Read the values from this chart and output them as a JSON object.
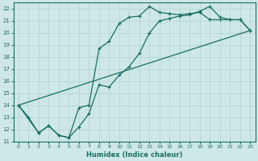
{
  "xlabel": "Humidex (Indice chaleur)",
  "ylabel": "",
  "xlim": [
    -0.5,
    23.5
  ],
  "ylim": [
    11,
    22.5
  ],
  "xticks": [
    0,
    1,
    2,
    3,
    4,
    5,
    6,
    7,
    8,
    9,
    10,
    11,
    12,
    13,
    14,
    15,
    16,
    17,
    18,
    19,
    20,
    21,
    22,
    23
  ],
  "yticks": [
    11,
    12,
    13,
    14,
    15,
    16,
    17,
    18,
    19,
    20,
    21,
    22
  ],
  "bg_color": "#cde8e6",
  "grid_color": "#b8d8d6",
  "line_color": "#1a6e65",
  "line1_x": [
    0,
    1,
    2,
    3,
    4,
    5,
    6,
    7,
    8,
    9,
    10,
    11,
    12,
    13,
    14,
    15,
    16,
    17,
    18,
    19,
    20,
    21,
    22,
    23
  ],
  "line1_y": [
    14.0,
    13.0,
    11.7,
    12.3,
    11.5,
    11.3,
    12.2,
    13.3,
    15.7,
    15.5,
    16.5,
    17.2,
    18.3,
    20.0,
    21.0,
    21.2,
    21.4,
    21.5,
    21.8,
    22.2,
    21.3,
    21.1,
    21.1,
    20.2
  ],
  "line2_x": [
    0,
    2,
    3,
    4,
    5,
    6,
    7,
    8,
    9,
    10,
    11,
    12,
    13,
    14,
    15,
    16,
    17,
    18,
    19,
    20,
    21,
    22,
    23
  ],
  "line2_y": [
    14.0,
    11.7,
    12.3,
    11.5,
    11.3,
    13.8,
    14.0,
    18.7,
    19.3,
    20.8,
    21.3,
    21.4,
    22.2,
    21.7,
    21.6,
    21.5,
    21.6,
    21.7,
    21.1,
    21.1,
    21.1,
    21.1,
    20.2
  ],
  "line3_x": [
    0,
    23
  ],
  "line3_y": [
    14.0,
    20.2
  ]
}
